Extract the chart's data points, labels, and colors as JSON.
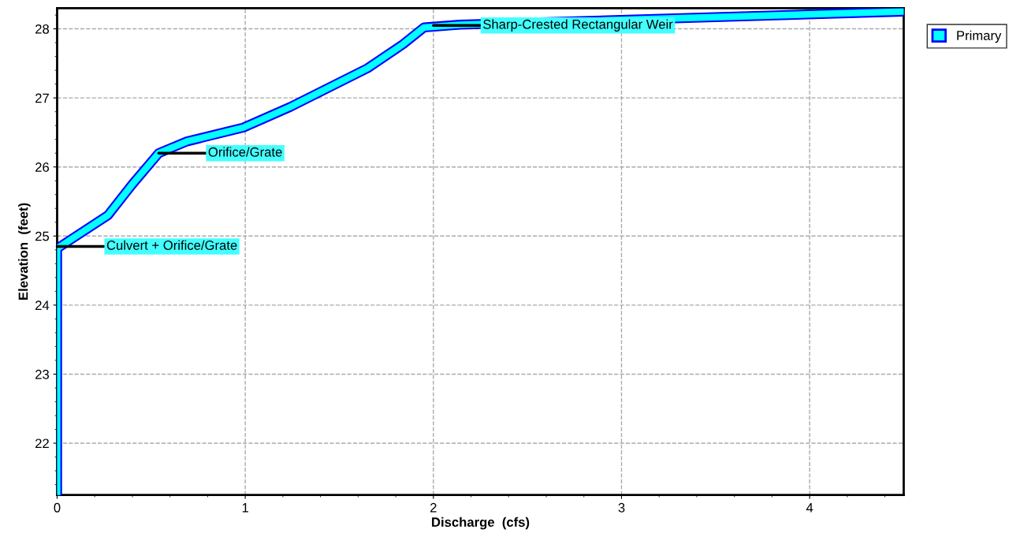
{
  "chart_data": {
    "type": "line",
    "xlabel": "Discharge  (cfs)",
    "ylabel": "Elevation  (feet)",
    "x": [
      0,
      0,
      0.27,
      0.4,
      0.54,
      0.69,
      0.99,
      1.24,
      1.65,
      1.84,
      1.95,
      2.14,
      4.5
    ],
    "series": [
      {
        "name": "Primary",
        "color": "#00ffff",
        "values": [
          21.25,
          24.82,
          25.3,
          25.75,
          26.2,
          26.37,
          26.57,
          26.87,
          27.43,
          27.78,
          28.02,
          28.06,
          28.25
        ]
      }
    ],
    "xlim": [
      0,
      4.5
    ],
    "xticks": [
      0,
      1,
      2,
      3,
      4
    ],
    "ylim": [
      21.25,
      28.3
    ],
    "yticks": [
      22,
      23,
      24,
      25,
      26,
      27,
      28
    ],
    "grid": true,
    "legend": "top right",
    "marker": "none",
    "line_style": "solid",
    "annotations": [
      {
        "text": "Culvert + Orifice/Grate",
        "x": 0,
        "y": 24.85
      },
      {
        "text": "Orifice/Grate",
        "x": 0.54,
        "y": 26.2
      },
      {
        "text": "Sharp-Crested Rectangular Weir",
        "x": 2.0,
        "y": 28.05
      }
    ]
  }
}
